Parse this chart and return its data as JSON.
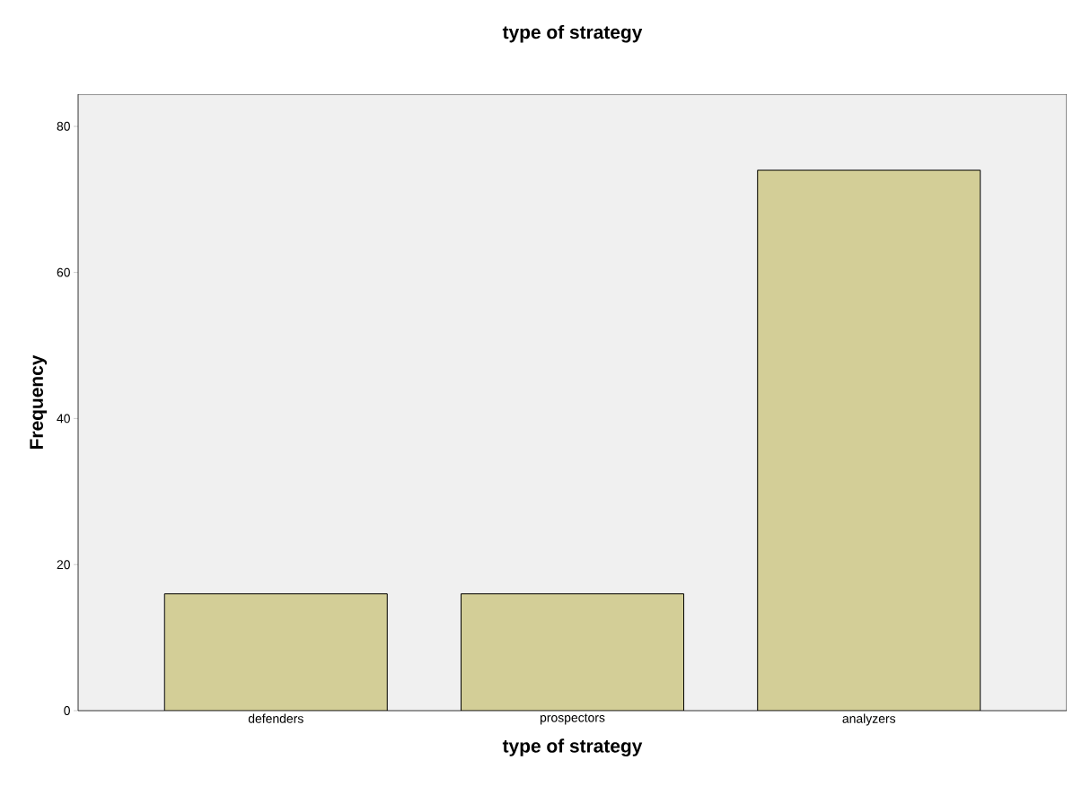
{
  "chart_data": {
    "type": "bar",
    "title": "type of strategy",
    "xlabel": "type of strategy",
    "ylabel": "Frequency",
    "categories": [
      "defenders",
      "prospectors",
      "analyzers"
    ],
    "values": [
      16,
      16,
      74
    ],
    "color": "#d3ce97",
    "ylim": [
      0,
      84.4
    ],
    "yticks": [
      0,
      20,
      40,
      60,
      80
    ],
    "grid": false
  }
}
